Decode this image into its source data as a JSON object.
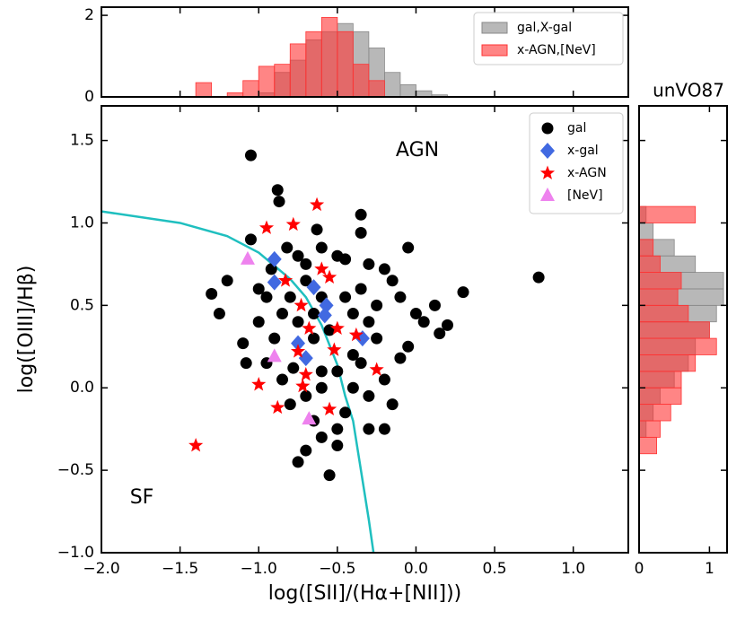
{
  "chart_data": [
    {
      "type": "histogram",
      "orientation": "vertical",
      "bins": [
        -1.4,
        -1.3,
        -1.2,
        -1.1,
        -1.0,
        -0.9,
        -0.8,
        -0.7,
        -0.6,
        -0.5,
        -0.4,
        -0.3,
        -0.2,
        -0.1,
        0.0,
        0.1,
        0.2
      ],
      "series": [
        {
          "name": "gal,X-gal",
          "color": "#888888",
          "values": [
            0,
            0,
            0,
            0,
            0.1,
            0.6,
            0.9,
            1.4,
            1.6,
            1.8,
            1.6,
            1.2,
            0.6,
            0.3,
            0.15,
            0.05
          ]
        },
        {
          "name": "x-AGN,[NeV]",
          "color": "#ff3333",
          "values": [
            0.35,
            0,
            0.1,
            0.4,
            0.75,
            0.8,
            1.3,
            1.6,
            1.95,
            1.6,
            0.8,
            0.4,
            0,
            0,
            0,
            0
          ]
        }
      ],
      "xlim": [
        -2.0,
        1.35
      ],
      "ylim": [
        0,
        2.2
      ],
      "yticks": [
        0,
        2
      ],
      "legend": "upper right"
    },
    {
      "type": "scatter",
      "xlabel": "log([SII]/(Hα+[NII]))",
      "ylabel": "log([OIII]/Hβ)",
      "annotations": [
        "AGN",
        "SF"
      ],
      "xlim": [
        -2.0,
        1.35
      ],
      "ylim": [
        -1.0,
        1.71
      ],
      "xticks": [
        {
          "value": -2.0,
          "label": "−2.0"
        },
        {
          "value": -1.5,
          "label": "−1.5"
        },
        {
          "value": -1.0,
          "label": "−1.0"
        },
        {
          "value": -0.5,
          "label": "−0.5"
        },
        {
          "value": 0,
          "label": "0.0"
        },
        0.5,
        {
          "value": 1,
          "label": "1.0"
        }
      ],
      "yticks": [
        {
          "value": -1.0,
          "label": "−1.0"
        },
        {
          "value": -0.5,
          "label": "−0.5"
        },
        {
          "value": 0,
          "label": "0.0"
        },
        0.5,
        {
          "value": 1,
          "label": "1.0"
        },
        1.5
      ],
      "legend": "upper right",
      "curve": {
        "color": "#1fbfbf",
        "x": [
          -2.0,
          -1.5,
          -1.2,
          -1.0,
          -0.8,
          -0.7,
          -0.6,
          -0.5,
          -0.45,
          -0.4,
          -0.35,
          -0.3,
          -0.27
        ],
        "y": [
          1.07,
          1.0,
          0.92,
          0.82,
          0.66,
          0.55,
          0.38,
          0.14,
          -0.05,
          -0.2,
          -0.5,
          -0.8,
          -1.0
        ]
      },
      "series": [
        {
          "name": "gal",
          "color": "#000000",
          "marker": "circle",
          "x": [
            -1.05,
            -0.88,
            -0.87,
            -0.63,
            -0.35,
            -0.35,
            -0.05,
            0.78,
            0.3,
            0.12,
            0.2,
            0.15,
            -1.3,
            -1.25,
            -1.2,
            -1.1,
            -1.0,
            -0.95,
            -1.05,
            -0.82,
            -0.75,
            -0.7,
            -0.6,
            -0.5,
            -0.45,
            -0.3,
            -0.2,
            -0.15,
            -0.1,
            0.0,
            0.05,
            -0.05,
            -0.1,
            -0.2,
            -0.15,
            -0.2,
            -0.3,
            -0.4,
            -0.45,
            -0.5,
            -0.6,
            -0.65,
            -0.75,
            -0.55,
            -0.8,
            -0.85,
            -0.9,
            -0.95,
            -1.0,
            -0.85,
            -0.8,
            -0.7,
            -0.65,
            -0.6,
            -0.55,
            -0.45,
            -0.4,
            -0.35,
            -0.3,
            -0.25,
            -0.25,
            -0.5,
            -0.6,
            -0.7,
            -0.78,
            -0.65,
            -0.75,
            -0.4,
            -0.35,
            -0.3,
            -0.5,
            -0.7,
            -1.08,
            -0.92,
            -0.6
          ],
          "y": [
            1.41,
            1.2,
            1.13,
            0.96,
            1.05,
            0.94,
            0.85,
            0.67,
            0.58,
            0.5,
            0.38,
            0.33,
            0.57,
            0.45,
            0.65,
            0.27,
            0.6,
            0.55,
            0.9,
            0.85,
            0.8,
            0.75,
            0.85,
            0.8,
            0.78,
            0.75,
            0.72,
            0.65,
            0.55,
            0.45,
            0.4,
            0.25,
            0.18,
            0.05,
            -0.1,
            -0.25,
            -0.05,
            0.0,
            -0.15,
            -0.25,
            -0.3,
            -0.2,
            -0.45,
            -0.53,
            -0.1,
            0.05,
            0.3,
            0.15,
            0.4,
            0.45,
            0.55,
            0.65,
            0.45,
            0.55,
            0.35,
            0.55,
            0.45,
            0.6,
            0.4,
            0.3,
            0.5,
            0.1,
            0.1,
            -0.05,
            0.12,
            0.3,
            0.4,
            0.2,
            0.15,
            -0.25,
            -0.35,
            -0.38,
            0.15,
            0.72,
            0.0
          ]
        },
        {
          "name": "x-gal",
          "color": "#4169e1",
          "marker": "diamond",
          "x": [
            -0.9,
            -0.9,
            -0.65,
            -0.57,
            -0.58,
            -0.34,
            -0.75,
            -0.7
          ],
          "y": [
            0.78,
            0.64,
            0.61,
            0.5,
            0.44,
            0.3,
            0.27,
            0.18
          ]
        },
        {
          "name": "x-AGN",
          "color": "#ff0000",
          "marker": "star",
          "x": [
            -1.4,
            -1.0,
            -0.88,
            -0.95,
            -0.78,
            -0.63,
            -0.6,
            -0.55,
            -0.73,
            -0.68,
            -0.5,
            -0.38,
            -0.7,
            -0.72,
            -0.55,
            -0.25,
            -0.52,
            -0.75,
            -0.83
          ],
          "y": [
            -0.35,
            0.02,
            -0.12,
            0.97,
            0.99,
            1.11,
            0.72,
            0.67,
            0.5,
            0.36,
            0.36,
            0.32,
            0.08,
            0.01,
            -0.13,
            0.11,
            0.23,
            0.22,
            0.65
          ]
        },
        {
          "name": "[NeV]",
          "color": "#ee82ee",
          "marker": "triangle",
          "x": [
            -1.07,
            -0.9,
            -0.68
          ],
          "y": [
            0.78,
            0.19,
            -0.19
          ]
        }
      ]
    },
    {
      "type": "histogram",
      "orientation": "horizontal",
      "title": "unVO87",
      "bins": [
        -0.4,
        -0.3,
        -0.2,
        -0.1,
        0.0,
        0.1,
        0.2,
        0.3,
        0.4,
        0.5,
        0.6,
        0.7,
        0.8,
        0.9,
        1.0,
        1.1
      ],
      "series": [
        {
          "name": "gal,X-gal",
          "color": "#888888",
          "values": [
            0,
            0.1,
            0.2,
            0.3,
            0.5,
            0.7,
            0.8,
            1.0,
            1.1,
            1.2,
            1.2,
            0.8,
            0.5,
            0.2,
            0.1
          ]
        },
        {
          "name": "x-AGN,[NeV]",
          "color": "#ff3333",
          "values": [
            0.25,
            0.3,
            0.45,
            0.6,
            0.6,
            0.8,
            1.1,
            1.0,
            0.7,
            0.55,
            0.6,
            0.3,
            0.2,
            0,
            0.8
          ]
        }
      ],
      "xlim": [
        0,
        1.25
      ],
      "xticks": [
        0,
        1
      ],
      "ylim": [
        -1.0,
        1.71
      ]
    }
  ]
}
